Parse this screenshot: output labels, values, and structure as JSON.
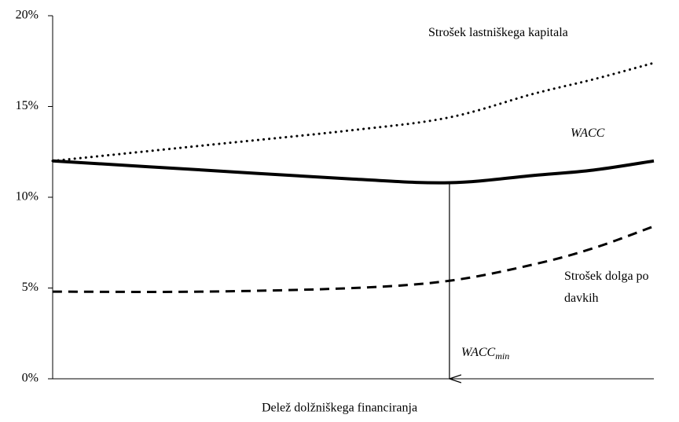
{
  "chart_data": {
    "type": "line",
    "x": [
      0,
      0.25,
      0.5,
      0.66,
      0.8,
      0.9,
      1
    ],
    "xlim": [
      0,
      1
    ],
    "x_label": "Delež dolžniškega financiranja",
    "series": [
      {
        "name": "Strošek lastniškega kapitala",
        "color": "#000000",
        "style": "dotted",
        "values": [
          12.0,
          12.85,
          13.7,
          14.4,
          15.7,
          16.5,
          17.4
        ]
      },
      {
        "name": "WACC",
        "color": "#000000",
        "style": "solid",
        "values": [
          12.0,
          11.5,
          11.0,
          10.8,
          11.2,
          11.5,
          12.0
        ]
      },
      {
        "name": "Strošek dolga po davkih",
        "color": "#000000",
        "style": "dashed",
        "values": [
          4.8,
          4.8,
          5.0,
          5.4,
          6.3,
          7.2,
          8.4
        ]
      }
    ],
    "ylim": [
      0,
      20
    ],
    "yticks": [
      {
        "value": 0,
        "label": "0%"
      },
      {
        "value": 5,
        "label": "5%"
      },
      {
        "value": 10,
        "label": "10%"
      },
      {
        "value": 15,
        "label": "15%"
      },
      {
        "value": 20,
        "label": "20%"
      }
    ],
    "annotation": {
      "text": "WACC",
      "subscript": "min"
    }
  }
}
